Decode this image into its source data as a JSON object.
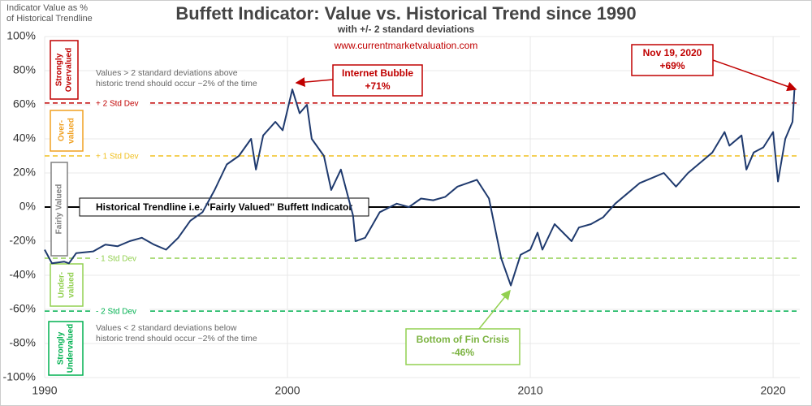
{
  "chart_data": {
    "type": "line",
    "title": "Buffett Indicator: Value vs. Historical Trend since 1990",
    "subtitle": "with +/- 2 standard deviations",
    "source": "www.currentmarketvaluation.com",
    "y_label_lines": [
      "Indicator Value as %",
      "of Historical Trendline"
    ],
    "xlim": [
      1990,
      2021.1
    ],
    "xticks": [
      1990,
      2000,
      2010,
      2020
    ],
    "ylim": [
      -100,
      100
    ],
    "yticks": [
      {
        "value": -100,
        "label": "-100%"
      },
      {
        "value": -80,
        "label": "-80%"
      },
      {
        "value": -60,
        "label": "-60%"
      },
      {
        "value": -40,
        "label": "-40%"
      },
      {
        "value": -20,
        "label": "-20%"
      },
      {
        "value": 0,
        "label": "0%"
      },
      {
        "value": 20,
        "label": "20%"
      },
      {
        "value": 40,
        "label": "40%"
      },
      {
        "value": 60,
        "label": "60%"
      },
      {
        "value": 80,
        "label": "80%"
      },
      {
        "value": 100,
        "label": "100%"
      }
    ],
    "grid": true,
    "series": [
      {
        "name": "Buffett Indicator",
        "color": "#1f3a6e",
        "x": [
          1990.0,
          1990.3,
          1990.8,
          1991.0,
          1991.3,
          1992.0,
          1992.5,
          1993.0,
          1993.5,
          1994.0,
          1994.5,
          1995.0,
          1995.5,
          1996.0,
          1996.5,
          1997.0,
          1997.5,
          1998.0,
          1998.5,
          1998.7,
          1999.0,
          1999.5,
          1999.8,
          2000.2,
          2000.5,
          2000.8,
          2001.0,
          2001.5,
          2001.8,
          2002.2,
          2002.7,
          2002.8,
          2003.2,
          2003.8,
          2004.5,
          2005.0,
          2005.5,
          2006.0,
          2006.5,
          2007.0,
          2007.8,
          2008.3,
          2008.8,
          2009.2,
          2009.6,
          2010.0,
          2010.3,
          2010.5,
          2011.0,
          2011.7,
          2012.0,
          2012.5,
          2013.0,
          2013.5,
          2014.0,
          2014.5,
          2015.0,
          2015.5,
          2016.0,
          2016.5,
          2017.0,
          2017.5,
          2018.0,
          2018.2,
          2018.7,
          2018.9,
          2019.2,
          2019.6,
          2020.0,
          2020.2,
          2020.5,
          2020.8,
          2020.88
        ],
        "values": [
          -25,
          -33,
          -32,
          -33,
          -27,
          -26,
          -22,
          -23,
          -20,
          -18,
          -22,
          -25,
          -18,
          -8,
          -3,
          10,
          25,
          30,
          40,
          22,
          42,
          50,
          45,
          69,
          55,
          60,
          40,
          30,
          10,
          22,
          -5,
          -20,
          -18,
          -3,
          2,
          0,
          5,
          4,
          6,
          12,
          16,
          5,
          -30,
          -46,
          -28,
          -25,
          -15,
          -25,
          -10,
          -20,
          -12,
          -10,
          -6,
          2,
          8,
          14,
          17,
          20,
          12,
          20,
          26,
          32,
          44,
          36,
          42,
          22,
          32,
          35,
          44,
          15,
          40,
          50,
          69
        ]
      }
    ],
    "reference_lines": [
      {
        "label": "Historical Trendline i.e. \"Fairly Valued\" Buffett Indicator",
        "value": 0,
        "color": "#000000"
      },
      {
        "label": "+ 2 Std Dev",
        "value": 61,
        "color": "#c00000"
      },
      {
        "label": "+ 1 Std Dev",
        "value": 30,
        "color": "#f0c020"
      },
      {
        "label": "- 1 Std Dev",
        "value": -30,
        "color": "#92d050"
      },
      {
        "label": "- 2 Std Dev",
        "value": -61,
        "color": "#00b050"
      }
    ],
    "zones": [
      {
        "lines": [
          "Strongly",
          "Overvalued"
        ],
        "color": "#c00000"
      },
      {
        "lines": [
          "Over-",
          "valued"
        ],
        "color": "#f0a020"
      },
      {
        "lines": [
          "Fairly Valued"
        ],
        "color": "#808080"
      },
      {
        "lines": [
          "Under-",
          "valued"
        ],
        "color": "#92d050"
      },
      {
        "lines": [
          "Strongly",
          "Undervalued"
        ],
        "color": "#00b050"
      }
    ],
    "notes": [
      [
        "Values > 2 standard deviations above",
        "historic trend should occur ~2% of the time"
      ],
      [
        "Values < 2 standard deviations below",
        "historic trend should occur ~2% of the time"
      ]
    ],
    "callouts": [
      {
        "text": "Internet Bubble",
        "label": "+71%",
        "color": "#c00000"
      },
      {
        "text": "Nov 19, 2020",
        "label": "+69%",
        "color": "#c00000"
      },
      {
        "text": "Bottom of Fin Crisis",
        "label": "-46%",
        "color": "#92d050"
      }
    ]
  }
}
